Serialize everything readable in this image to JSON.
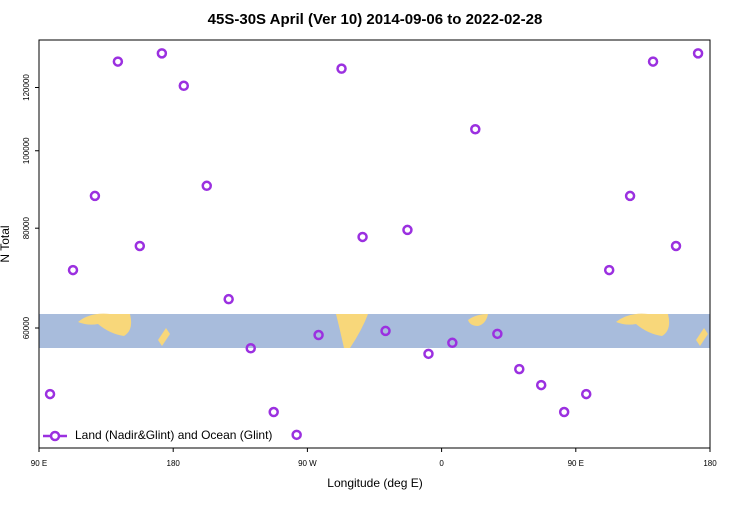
{
  "chart_data": {
    "type": "scatter",
    "title": "45S-30S April (Ver 10)   2014-09-06 to 2022-02-28",
    "x_label": "Longitude (deg E)",
    "y_label": "N Total",
    "xlim": [
      90,
      540
    ],
    "ylim": [
      42460,
      137600
    ],
    "ylog": true,
    "xticks": [
      {
        "value": 90,
        "label": "90 E"
      },
      180,
      {
        "value": 270,
        "label": "90 W"
      },
      {
        "value": 360,
        "label": "0"
      },
      {
        "value": 450,
        "label": "90 E"
      },
      {
        "value": 540,
        "label": "180"
      }
    ],
    "yticks": [
      60000,
      80000,
      100000,
      120000
    ],
    "legend": "lower left",
    "series": [
      {
        "name": "Land (Nadir&Glint) and Ocean (Glint)",
        "color": "#9b30e0",
        "x": [
          97.4,
          112.8,
          127.5,
          142.9,
          157.6,
          172.4,
          187.1,
          202.5,
          217.2,
          232.0,
          247.4,
          262.8,
          277.5,
          292.9,
          307.0,
          322.4,
          337.1,
          351.2,
          367.2,
          382.6,
          397.4,
          412.1,
          426.8,
          442.2,
          457.0,
          472.4,
          486.4,
          501.8,
          517.2,
          532.0
        ],
        "values": [
          49600,
          70900,
          87800,
          129300,
          76000,
          132400,
          120600,
          90400,
          65200,
          56600,
          47100,
          44100,
          58800,
          126700,
          78000,
          59500,
          79600,
          55700,
          57500,
          106400,
          59000,
          53300,
          50900,
          47100,
          49600,
          70900,
          87800,
          129300,
          76000,
          132400
        ]
      }
    ]
  }
}
